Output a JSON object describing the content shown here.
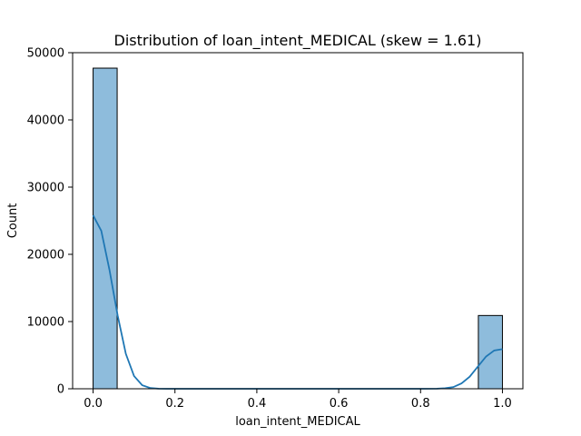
{
  "chart_data": {
    "type": "bar",
    "title": "Distribution of loan_intent_MEDICAL (skew = 1.61)",
    "xlabel": "loan_intent_MEDICAL",
    "ylabel": "Count",
    "xlim": [
      -0.05,
      1.05
    ],
    "ylim": [
      0,
      50000
    ],
    "xticks": [
      "0.0",
      "0.2",
      "0.4",
      "0.6",
      "0.8",
      "1.0"
    ],
    "yticks": [
      "0",
      "10000",
      "20000",
      "30000",
      "40000",
      "50000"
    ],
    "grid": false,
    "bins": [
      {
        "x0": 0.0,
        "x1": 0.0588,
        "count": 47700
      },
      {
        "x0": 0.0588,
        "x1": 0.1176,
        "count": 0
      },
      {
        "x0": 0.1176,
        "x1": 0.1765,
        "count": 0
      },
      {
        "x0": 0.1765,
        "x1": 0.2353,
        "count": 0
      },
      {
        "x0": 0.2353,
        "x1": 0.2941,
        "count": 0
      },
      {
        "x0": 0.2941,
        "x1": 0.3529,
        "count": 0
      },
      {
        "x0": 0.3529,
        "x1": 0.4118,
        "count": 0
      },
      {
        "x0": 0.4118,
        "x1": 0.4706,
        "count": 0
      },
      {
        "x0": 0.4706,
        "x1": 0.5294,
        "count": 0
      },
      {
        "x0": 0.5294,
        "x1": 0.5882,
        "count": 0
      },
      {
        "x0": 0.5882,
        "x1": 0.6471,
        "count": 0
      },
      {
        "x0": 0.6471,
        "x1": 0.7059,
        "count": 0
      },
      {
        "x0": 0.7059,
        "x1": 0.7647,
        "count": 0
      },
      {
        "x0": 0.7647,
        "x1": 0.8235,
        "count": 0
      },
      {
        "x0": 0.8235,
        "x1": 0.8824,
        "count": 0
      },
      {
        "x0": 0.8824,
        "x1": 0.9412,
        "count": 0
      },
      {
        "x0": 0.9412,
        "x1": 1.0,
        "count": 10900
      }
    ],
    "kde": {
      "x": [
        0.0,
        0.02,
        0.04,
        0.06,
        0.08,
        0.1,
        0.12,
        0.14,
        0.16,
        0.18,
        0.2,
        0.3,
        0.4,
        0.5,
        0.6,
        0.7,
        0.8,
        0.84,
        0.86,
        0.88,
        0.9,
        0.92,
        0.94,
        0.96,
        0.98,
        1.0
      ],
      "y": [
        25800,
        23500,
        17700,
        10900,
        5200,
        1900,
        530,
        110,
        20,
        0,
        0,
        0,
        0,
        0,
        0,
        0,
        0,
        20,
        80,
        250,
        800,
        1800,
        3300,
        4800,
        5700,
        5900
      ]
    },
    "colors": {
      "bar_fill": "#8ebcdc",
      "bar_edge": "#000000",
      "kde_line": "#1f77b4"
    }
  }
}
